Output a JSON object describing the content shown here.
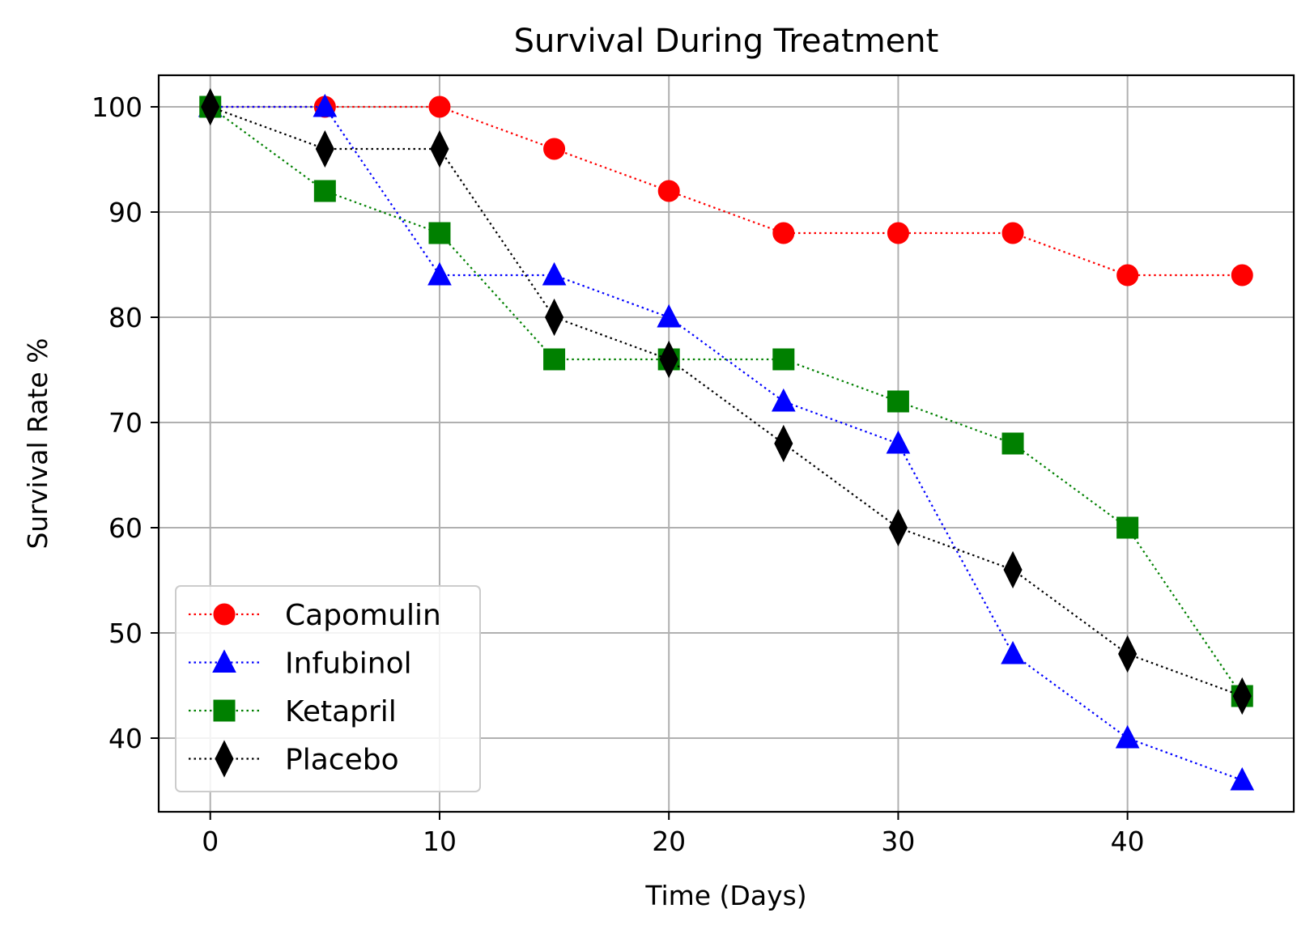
{
  "chart_data": {
    "type": "line",
    "title": "Survival During Treatment",
    "xlabel": "Time (Days)",
    "ylabel": "Survival Rate %",
    "xlim": [
      -2.25,
      47.25
    ],
    "ylim": [
      33.0,
      103.0
    ],
    "xticks": [
      0,
      10,
      20,
      30,
      40
    ],
    "yticks": [
      40,
      50,
      60,
      70,
      80,
      90,
      100
    ],
    "grid": true,
    "legend_position": "lower-left",
    "x": [
      0,
      5,
      10,
      15,
      20,
      25,
      30,
      35,
      40,
      45
    ],
    "series": [
      {
        "name": "Capomulin",
        "color": "#ff0000",
        "marker": "circle",
        "line_style": "dotted",
        "values": [
          100,
          100,
          100,
          96,
          92,
          88,
          88,
          88,
          84,
          84
        ]
      },
      {
        "name": "Infubinol",
        "color": "#0000ff",
        "marker": "triangle",
        "line_style": "dotted",
        "values": [
          100,
          100,
          84,
          84,
          80,
          72,
          68,
          48,
          40,
          36
        ]
      },
      {
        "name": "Ketapril",
        "color": "#008000",
        "marker": "square",
        "line_style": "dotted",
        "values": [
          100,
          92,
          88,
          76,
          76,
          76,
          72,
          68,
          60,
          44
        ]
      },
      {
        "name": "Placebo",
        "color": "#000000",
        "marker": "diamond",
        "line_style": "dotted",
        "values": [
          100,
          96,
          96,
          80,
          76,
          68,
          60,
          56,
          48,
          44
        ]
      }
    ]
  }
}
